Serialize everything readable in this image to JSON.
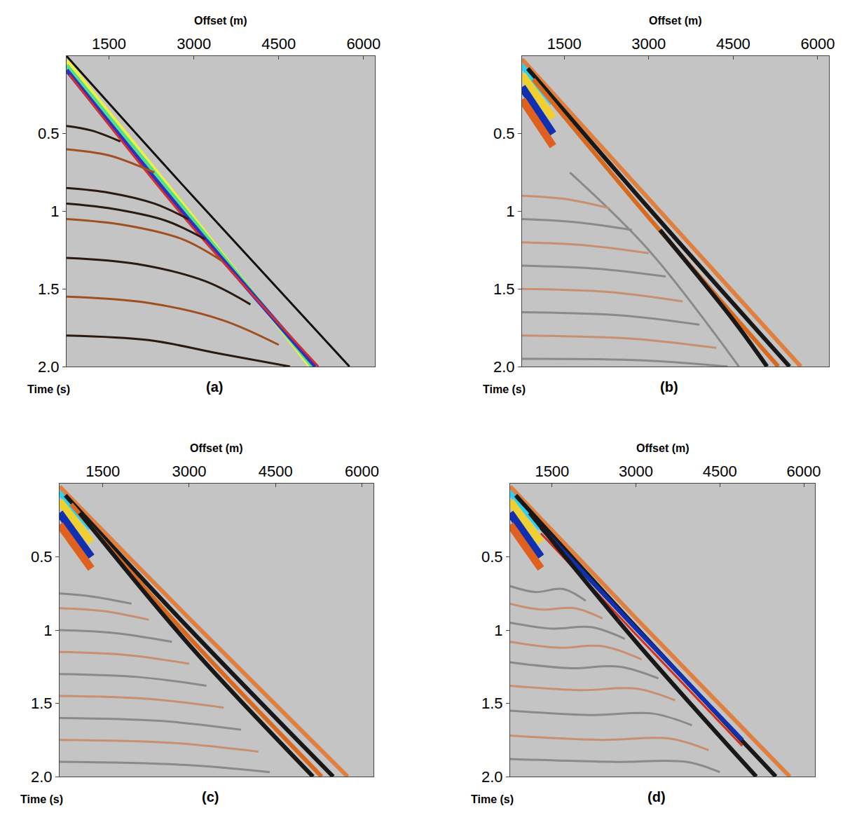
{
  "chart_data": [
    {
      "type": "line",
      "label": "(a)",
      "x_label": "Offset (m)",
      "y_label": "Time (s)",
      "xlim": [
        750,
        6200
      ],
      "xticks": [
        1500,
        3000,
        4500,
        6000
      ],
      "ylim": [
        2,
        0
      ],
      "yticks": [
        0.5,
        1,
        1.5,
        {
          "value": 2,
          "label": "2.0"
        }
      ],
      "series": [
        {
          "color": "#f0f040",
          "line_style": "bold",
          "x": [
            750,
            2900,
            5060
          ],
          "values": [
            0.03,
            1.0,
            2.0
          ]
        },
        {
          "color": "#50e090",
          "line_style": "bold",
          "x": [
            750,
            2900,
            5100
          ],
          "values": [
            0.06,
            1.02,
            2.0
          ]
        },
        {
          "color": "#3030c0",
          "line_style": "bold",
          "x": [
            750,
            2900,
            5150
          ],
          "values": [
            0.09,
            1.05,
            2.0
          ]
        },
        {
          "color": "#d03030",
          "line_style": "solid",
          "x": [
            800,
            2900,
            5200
          ],
          "values": [
            0.12,
            1.07,
            2.0
          ]
        },
        {
          "color": "#101010",
          "line_style": "solid",
          "x": [
            750,
            3000,
            5750
          ],
          "values": [
            0.0,
            0.91,
            2.0
          ]
        },
        {
          "color": "#2a1a10",
          "line_style": "solid",
          "x": [
            750,
            1200,
            1700
          ],
          "values": [
            0.45,
            0.48,
            0.55
          ]
        },
        {
          "color": "#a05020",
          "line_style": "solid",
          "x": [
            750,
            1500,
            2300
          ],
          "values": [
            0.6,
            0.64,
            0.75
          ]
        },
        {
          "color": "#2a1a10",
          "line_style": "solid",
          "x": [
            750,
            1500,
            2300,
            2900
          ],
          "values": [
            0.85,
            0.88,
            0.95,
            1.05
          ]
        },
        {
          "color": "#2a1a10",
          "line_style": "solid",
          "x": [
            750,
            1500,
            2500,
            3200
          ],
          "values": [
            0.95,
            0.98,
            1.06,
            1.18
          ]
        },
        {
          "color": "#a05020",
          "line_style": "solid",
          "x": [
            750,
            1800,
            2800,
            3500
          ],
          "values": [
            1.05,
            1.09,
            1.18,
            1.32
          ]
        },
        {
          "color": "#2a1a10",
          "line_style": "solid",
          "x": [
            750,
            2000,
            3200,
            4000
          ],
          "values": [
            1.3,
            1.34,
            1.45,
            1.6
          ]
        },
        {
          "color": "#a05020",
          "line_style": "solid",
          "x": [
            750,
            2200,
            3500,
            4500
          ],
          "values": [
            1.55,
            1.59,
            1.7,
            1.86
          ]
        },
        {
          "color": "#2a1a10",
          "line_style": "solid",
          "x": [
            750,
            2200,
            3500,
            4700
          ],
          "values": [
            1.8,
            1.83,
            1.92,
            2.0
          ]
        }
      ]
    },
    {
      "type": "line",
      "label": "(b)",
      "x_label": "Offset (m)",
      "y_label": "Time (s)",
      "xlim": [
        750,
        6200
      ],
      "xticks": [
        1500,
        3000,
        4500,
        6000
      ],
      "ylim": [
        2,
        0
      ],
      "yticks": [
        0.5,
        1,
        1.5,
        {
          "value": 2,
          "label": "2.0"
        }
      ],
      "series": [
        {
          "color": "#30d0f0",
          "line_style": "heavy",
          "x": [
            750,
            1300
          ],
          "values": [
            0.05,
            0.3
          ]
        },
        {
          "color": "#f0d030",
          "line_style": "heavy",
          "x": [
            750,
            1300
          ],
          "values": [
            0.12,
            0.4
          ]
        },
        {
          "color": "#1030b0",
          "line_style": "heavy",
          "x": [
            750,
            1300
          ],
          "values": [
            0.2,
            0.5
          ]
        },
        {
          "color": "#e06020",
          "line_style": "heavy",
          "x": [
            750,
            1300
          ],
          "values": [
            0.28,
            0.58
          ]
        },
        {
          "color": "#e08040",
          "line_style": "bold",
          "x": [
            750,
            3000,
            5700
          ],
          "values": [
            0.02,
            0.92,
            2.0
          ]
        },
        {
          "color": "#181818",
          "line_style": "bold",
          "x": [
            850,
            3000,
            5500
          ],
          "values": [
            0.08,
            0.98,
            2.0
          ]
        },
        {
          "color": "#d86a20",
          "line_style": "bold",
          "x": [
            950,
            3000,
            5300
          ],
          "values": [
            0.15,
            1.04,
            2.0
          ]
        },
        {
          "color": "#181818",
          "line_style": "bold",
          "x": [
            3200,
            4500,
            5100
          ],
          "values": [
            1.12,
            1.7,
            2.0
          ]
        },
        {
          "color": "#8a8a8a",
          "line_style": "solid",
          "x": [
            1600,
            3000,
            4600
          ],
          "values": [
            0.75,
            1.25,
            2.0
          ]
        },
        {
          "color": "#c89070",
          "line_style": "solid",
          "x": [
            750,
            1500,
            2300
          ],
          "values": [
            0.9,
            0.92,
            0.98
          ]
        },
        {
          "color": "#8a8a8a",
          "line_style": "solid",
          "x": [
            750,
            1700,
            2700
          ],
          "values": [
            1.05,
            1.07,
            1.12
          ]
        },
        {
          "color": "#c89070",
          "line_style": "solid",
          "x": [
            750,
            1900,
            3000
          ],
          "values": [
            1.2,
            1.22,
            1.27
          ]
        },
        {
          "color": "#8a8a8a",
          "line_style": "solid",
          "x": [
            750,
            2100,
            3300
          ],
          "values": [
            1.35,
            1.37,
            1.42
          ]
        },
        {
          "color": "#c89070",
          "line_style": "solid",
          "x": [
            750,
            2300,
            3600
          ],
          "values": [
            1.5,
            1.52,
            1.58
          ]
        },
        {
          "color": "#8a8a8a",
          "line_style": "solid",
          "x": [
            750,
            2500,
            3900
          ],
          "values": [
            1.65,
            1.67,
            1.73
          ]
        },
        {
          "color": "#c89070",
          "line_style": "solid",
          "x": [
            750,
            2700,
            4200
          ],
          "values": [
            1.8,
            1.82,
            1.88
          ]
        },
        {
          "color": "#8a8a8a",
          "line_style": "solid",
          "x": [
            750,
            2900,
            4400
          ],
          "values": [
            1.95,
            1.96,
            2.0
          ]
        }
      ]
    },
    {
      "type": "line",
      "label": "(c)",
      "x_label": "Offset (m)",
      "y_label": "Time (s)",
      "xlim": [
        750,
        6200
      ],
      "xticks": [
        1500,
        3000,
        4500,
        6000
      ],
      "ylim": [
        2,
        0
      ],
      "yticks": [
        0.5,
        1,
        1.5,
        {
          "value": 2,
          "label": "2.0"
        }
      ],
      "series": [
        {
          "color": "#30d0f0",
          "line_style": "heavy",
          "x": [
            750,
            1300
          ],
          "values": [
            0.05,
            0.3
          ]
        },
        {
          "color": "#f0d030",
          "line_style": "heavy",
          "x": [
            750,
            1300
          ],
          "values": [
            0.12,
            0.4
          ]
        },
        {
          "color": "#1030b0",
          "line_style": "heavy",
          "x": [
            750,
            1300
          ],
          "values": [
            0.2,
            0.5
          ]
        },
        {
          "color": "#e06020",
          "line_style": "heavy",
          "x": [
            750,
            1300
          ],
          "values": [
            0.28,
            0.58
          ]
        },
        {
          "color": "#e08040",
          "line_style": "bold",
          "x": [
            750,
            3000,
            5750
          ],
          "values": [
            0.02,
            0.92,
            2.0
          ]
        },
        {
          "color": "#181818",
          "line_style": "bold",
          "x": [
            850,
            3000,
            5500
          ],
          "values": [
            0.08,
            0.99,
            2.0
          ]
        },
        {
          "color": "#d86a20",
          "line_style": "bold",
          "x": [
            950,
            3000,
            5300
          ],
          "values": [
            0.14,
            1.05,
            2.0
          ]
        },
        {
          "color": "#181818",
          "line_style": "bold",
          "x": [
            1100,
            3000,
            5150
          ],
          "values": [
            0.2,
            1.1,
            2.0
          ]
        },
        {
          "color": "#8a8a8a",
          "line_style": "solid",
          "x": [
            750,
            1300,
            2000
          ],
          "values": [
            0.75,
            0.77,
            0.82
          ]
        },
        {
          "color": "#c89070",
          "line_style": "solid",
          "x": [
            750,
            1500,
            2300
          ],
          "values": [
            0.85,
            0.87,
            0.93
          ]
        },
        {
          "color": "#8a8a8a",
          "line_style": "solid",
          "x": [
            750,
            1700,
            2700
          ],
          "values": [
            1.0,
            1.02,
            1.08
          ]
        },
        {
          "color": "#c89070",
          "line_style": "solid",
          "x": [
            750,
            1900,
            3000
          ],
          "values": [
            1.15,
            1.17,
            1.23
          ]
        },
        {
          "color": "#8a8a8a",
          "line_style": "solid",
          "x": [
            750,
            2100,
            3300
          ],
          "values": [
            1.3,
            1.32,
            1.38
          ]
        },
        {
          "color": "#c89070",
          "line_style": "solid",
          "x": [
            750,
            2300,
            3600
          ],
          "values": [
            1.45,
            1.47,
            1.53
          ]
        },
        {
          "color": "#8a8a8a",
          "line_style": "solid",
          "x": [
            750,
            2500,
            3900
          ],
          "values": [
            1.6,
            1.62,
            1.68
          ]
        },
        {
          "color": "#c89070",
          "line_style": "solid",
          "x": [
            750,
            2700,
            4200
          ],
          "values": [
            1.75,
            1.77,
            1.83
          ]
        },
        {
          "color": "#8a8a8a",
          "line_style": "solid",
          "x": [
            750,
            2900,
            4400
          ],
          "values": [
            1.9,
            1.92,
            1.97
          ]
        }
      ]
    },
    {
      "type": "line",
      "label": "(d)",
      "x_label": "Offset (m)",
      "y_label": "Time (s)",
      "xlim": [
        750,
        6200
      ],
      "xticks": [
        1500,
        3000,
        4500,
        6000
      ],
      "ylim": [
        2,
        0
      ],
      "yticks": [
        0.5,
        1,
        1.5,
        {
          "value": 2,
          "label": "2.0"
        }
      ],
      "series": [
        {
          "color": "#30d0f0",
          "line_style": "heavy",
          "x": [
            750,
            1300
          ],
          "values": [
            0.05,
            0.3
          ]
        },
        {
          "color": "#f0d030",
          "line_style": "heavy",
          "x": [
            750,
            1300
          ],
          "values": [
            0.12,
            0.4
          ]
        },
        {
          "color": "#1030b0",
          "line_style": "heavy",
          "x": [
            750,
            1300
          ],
          "values": [
            0.2,
            0.5
          ]
        },
        {
          "color": "#e06020",
          "line_style": "heavy",
          "x": [
            750,
            1300
          ],
          "values": [
            0.28,
            0.58
          ]
        },
        {
          "color": "#e08040",
          "line_style": "bold",
          "x": [
            750,
            3000,
            5750
          ],
          "values": [
            0.02,
            0.92,
            2.0
          ]
        },
        {
          "color": "#181818",
          "line_style": "bold",
          "x": [
            850,
            3000,
            5500
          ],
          "values": [
            0.08,
            0.98,
            2.0
          ]
        },
        {
          "color": "#1030b0",
          "line_style": "bold",
          "x": [
            1300,
            3000,
            4900
          ],
          "values": [
            0.3,
            0.99,
            1.75
          ]
        },
        {
          "color": "#d03020",
          "line_style": "solid",
          "x": [
            1300,
            3000,
            4900
          ],
          "values": [
            0.34,
            1.03,
            1.79
          ]
        },
        {
          "color": "#181818",
          "line_style": "bold",
          "x": [
            1100,
            3000,
            5150
          ],
          "values": [
            0.2,
            1.08,
            2.0
          ]
        },
        {
          "color": "#8a8a8a",
          "line_style": "solid",
          "x": [
            750,
            1200,
            1700,
            2100
          ],
          "values": [
            0.7,
            0.74,
            0.72,
            0.8
          ]
        },
        {
          "color": "#c89070",
          "line_style": "solid",
          "x": [
            750,
            1300,
            1900,
            2400
          ],
          "values": [
            0.82,
            0.86,
            0.85,
            0.92
          ]
        },
        {
          "color": "#8a8a8a",
          "line_style": "solid",
          "x": [
            750,
            1500,
            2200,
            2800
          ],
          "values": [
            0.95,
            0.99,
            0.98,
            1.06
          ]
        },
        {
          "color": "#c89070",
          "line_style": "solid",
          "x": [
            750,
            1600,
            2400,
            3100
          ],
          "values": [
            1.08,
            1.12,
            1.11,
            1.2
          ]
        },
        {
          "color": "#8a8a8a",
          "line_style": "solid",
          "x": [
            750,
            1800,
            2700,
            3400
          ],
          "values": [
            1.22,
            1.26,
            1.25,
            1.33
          ]
        },
        {
          "color": "#c89070",
          "line_style": "solid",
          "x": [
            750,
            2000,
            3000,
            3700
          ],
          "values": [
            1.38,
            1.41,
            1.4,
            1.48
          ]
        },
        {
          "color": "#8a8a8a",
          "line_style": "solid",
          "x": [
            750,
            2200,
            3300,
            4000
          ],
          "values": [
            1.55,
            1.58,
            1.57,
            1.65
          ]
        },
        {
          "color": "#c89070",
          "line_style": "solid",
          "x": [
            750,
            2400,
            3600,
            4300
          ],
          "values": [
            1.72,
            1.75,
            1.74,
            1.82
          ]
        },
        {
          "color": "#8a8a8a",
          "line_style": "solid",
          "x": [
            750,
            2600,
            3900,
            4500
          ],
          "values": [
            1.88,
            1.9,
            1.9,
            1.97
          ]
        }
      ]
    }
  ]
}
